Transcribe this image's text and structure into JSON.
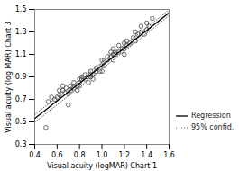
{
  "chart_data": {
    "type": "scatter",
    "xlabel": "Visual acuity (logMAR) Chart 1",
    "ylabel": "Visual acuity (log MAR) Chart 3",
    "xlim": [
      0.4,
      1.6
    ],
    "ylim": [
      0.3,
      1.5
    ],
    "xticks": [
      0.4,
      0.6,
      0.8,
      {
        "value": 1.0,
        "label": "1.0"
      },
      1.2,
      1.4,
      1.6
    ],
    "yticks": [
      0.3,
      0.5,
      0.7,
      0.9,
      1.1,
      1.3,
      1.5
    ],
    "legend": "right",
    "series": [
      {
        "type": "scatter",
        "marker": "open_circle",
        "color": "#444444",
        "x": [
          0.5,
          0.52,
          0.55,
          0.58,
          0.6,
          0.62,
          0.62,
          0.65,
          0.65,
          0.67,
          0.68,
          0.7,
          0.7,
          0.72,
          0.72,
          0.75,
          0.75,
          0.78,
          0.78,
          0.8,
          0.8,
          0.8,
          0.82,
          0.82,
          0.85,
          0.85,
          0.87,
          0.88,
          0.9,
          0.9,
          0.9,
          0.92,
          0.92,
          0.95,
          0.95,
          0.98,
          1.0,
          1.0,
          1.0,
          1.02,
          1.02,
          1.05,
          1.05,
          1.08,
          1.08,
          1.1,
          1.1,
          1.1,
          1.12,
          1.12,
          1.15,
          1.15,
          1.18,
          1.2,
          1.2,
          1.2,
          1.22,
          1.22,
          1.25,
          1.28,
          1.3,
          1.3,
          1.32,
          1.35,
          1.35,
          1.38,
          1.4,
          1.4,
          1.42,
          1.45
        ],
        "values": [
          0.45,
          0.68,
          0.72,
          0.7,
          0.72,
          0.78,
          0.74,
          0.78,
          0.82,
          0.76,
          0.8,
          0.65,
          0.75,
          0.78,
          0.82,
          0.8,
          0.85,
          0.82,
          0.78,
          0.85,
          0.88,
          0.82,
          0.88,
          0.9,
          0.88,
          0.92,
          0.9,
          0.85,
          0.9,
          0.92,
          0.95,
          0.92,
          0.88,
          0.95,
          0.98,
          0.95,
          0.95,
          1.0,
          1.05,
          1.0,
          1.05,
          1.05,
          1.08,
          1.08,
          1.12,
          1.05,
          1.1,
          1.15,
          1.1,
          1.12,
          1.12,
          1.18,
          1.15,
          1.1,
          1.15,
          1.2,
          1.18,
          1.22,
          1.2,
          1.25,
          1.22,
          1.3,
          1.28,
          1.3,
          1.35,
          1.28,
          1.32,
          1.38,
          1.35,
          1.42
        ]
      },
      {
        "name": "Regression",
        "type": "line",
        "line_style": "solid",
        "color": "#000000",
        "x": [
          0.4,
          1.6
        ],
        "values": [
          0.53,
          1.47
        ]
      },
      {
        "name": "95% confid.",
        "type": "line",
        "line_style": "dotted",
        "color": "#666666",
        "x": [
          0.4,
          1.6
        ],
        "values": [
          0.565,
          1.495
        ]
      },
      {
        "name": "95% confid.",
        "type": "line",
        "line_style": "dotted",
        "color": "#666666",
        "x": [
          0.4,
          1.6
        ],
        "values": [
          0.495,
          1.445
        ]
      }
    ]
  }
}
